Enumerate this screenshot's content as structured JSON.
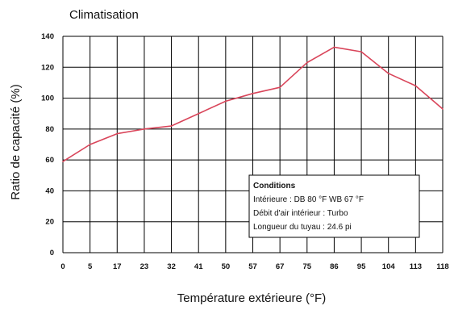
{
  "chart_data": {
    "type": "line",
    "title": "Climatisation",
    "xlabel": "Température extérieure (°F)",
    "ylabel": "Ratio de capacité (%)",
    "categories": [
      "0",
      "5",
      "17",
      "23",
      "32",
      "41",
      "50",
      "57",
      "67",
      "75",
      "86",
      "95",
      "104",
      "113",
      "118"
    ],
    "values": [
      59,
      70,
      77,
      80,
      82,
      90,
      98,
      103,
      107,
      123,
      133,
      130,
      116,
      108,
      93
    ],
    "ylim": [
      0,
      140
    ],
    "yticks": [
      "0",
      "20",
      "40",
      "60",
      "80",
      "100",
      "120",
      "140"
    ],
    "grid": true,
    "line_color": "#d9455a",
    "annotation": {
      "title": "Conditions",
      "lines": [
        "Intérieure : DB 80 °F   WB 67 °F",
        "Débit d'air intérieur : Turbo",
        "Longueur du tuyau : 24.6 pi"
      ],
      "placement": "bottom-right"
    }
  }
}
